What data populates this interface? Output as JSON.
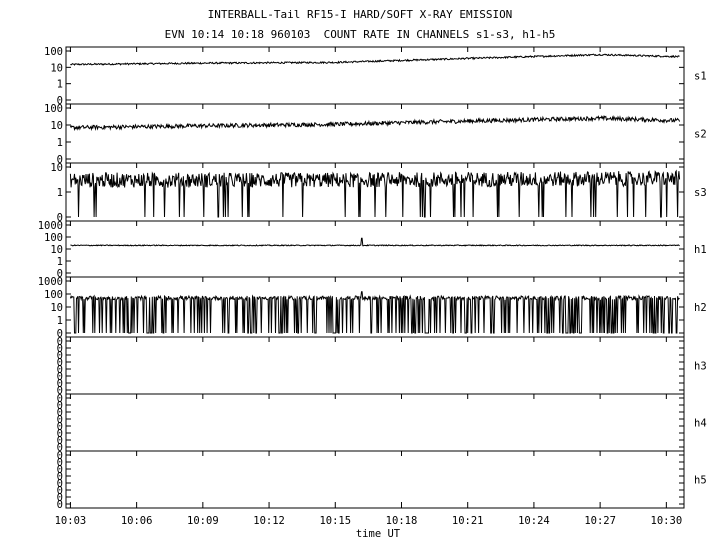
{
  "title": "INTERBALL-Tail RF15-I HARD/SOFT X-RAY EMISSION",
  "subtitle": "EVN 10:14 10:18 960103  COUNT RATE IN CHANNELS s1-s3, h1-h5",
  "chart_data": {
    "type": "line",
    "xlabel": "time UT",
    "x_ticks": [
      "10:03",
      "10:06",
      "10:09",
      "10:12",
      "10:15",
      "10:18",
      "10:21",
      "10:24",
      "10:27",
      "10:30"
    ],
    "x_range_minutes": [
      2.8,
      30.8
    ],
    "log_scale": true,
    "grid": false,
    "panels": [
      {
        "name": "s1",
        "y_ticks": [
          "100",
          "10",
          "1",
          "0"
        ],
        "y_values": [
          100,
          10,
          1,
          0
        ],
        "trend": [
          [
            3,
            15
          ],
          [
            9,
            18
          ],
          [
            15,
            20
          ],
          [
            21,
            35
          ],
          [
            27,
            60
          ],
          [
            30.6,
            45
          ]
        ],
        "noise": 0.05,
        "dips": 0,
        "spikes": []
      },
      {
        "name": "s2",
        "y_ticks": [
          "100",
          "10",
          "1",
          "0"
        ],
        "y_values": [
          100,
          10,
          1,
          0
        ],
        "trend": [
          [
            3,
            7
          ],
          [
            9,
            9
          ],
          [
            15,
            11
          ],
          [
            21,
            17
          ],
          [
            27,
            25
          ],
          [
            30.6,
            18
          ]
        ],
        "noise": 0.12,
        "dips": 0,
        "spikes": []
      },
      {
        "name": "s3",
        "y_ticks": [
          "10",
          "1",
          "0"
        ],
        "y_values": [
          10,
          1,
          0
        ],
        "trend": [
          [
            3,
            3
          ],
          [
            15,
            3
          ],
          [
            30.6,
            3.5
          ]
        ],
        "noise": 0.3,
        "dips": 0.06,
        "spikes": []
      },
      {
        "name": "h1",
        "y_ticks": [
          "1000",
          "100",
          "10",
          "1",
          "0"
        ],
        "y_values": [
          1000,
          100,
          10,
          1,
          0
        ],
        "trend": [
          [
            3,
            20
          ],
          [
            15,
            20
          ],
          [
            30.6,
            20
          ]
        ],
        "noise": 0.04,
        "dips": 0,
        "spikes": [
          [
            16.2,
            80
          ]
        ]
      },
      {
        "name": "h2",
        "y_ticks": [
          "1000",
          "100",
          "10",
          "1",
          "0"
        ],
        "y_values": [
          1000,
          100,
          10,
          1,
          0
        ],
        "trend": [
          [
            3,
            50
          ],
          [
            15,
            50
          ],
          [
            30.6,
            50
          ]
        ],
        "noise": 0.15,
        "dips": 0.25,
        "spikes": [
          [
            16.2,
            150
          ]
        ]
      },
      {
        "name": "h3",
        "y_ticks": [
          "0",
          "0",
          "0",
          "0",
          "0",
          "0",
          "0",
          "0"
        ],
        "y_values": [],
        "trend": [],
        "noise": 0,
        "dips": 0,
        "spikes": []
      },
      {
        "name": "h4",
        "y_ticks": [
          "0",
          "0",
          "0",
          "0",
          "0",
          "0",
          "0",
          "0"
        ],
        "y_values": [],
        "trend": [],
        "noise": 0,
        "dips": 0,
        "spikes": []
      },
      {
        "name": "h5",
        "y_ticks": [
          "0",
          "0",
          "0",
          "0",
          "0",
          "0",
          "0",
          "0"
        ],
        "y_values": [],
        "trend": [],
        "noise": 0,
        "dips": 0,
        "spikes": []
      }
    ]
  }
}
